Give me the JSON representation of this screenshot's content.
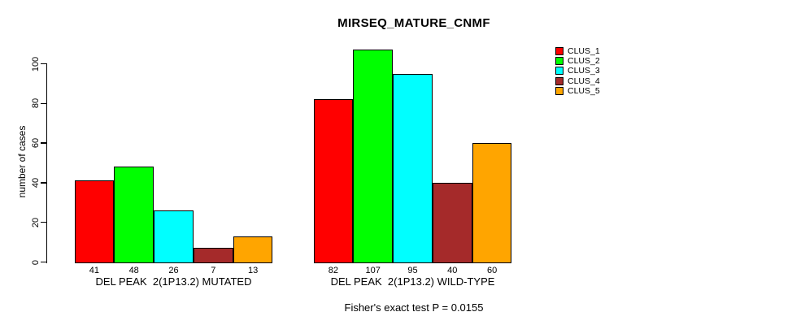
{
  "chart_data": {
    "type": "bar",
    "title": "MIRSEQ_MATURE_CNMF",
    "ylabel": "number of cases",
    "ylim": [
      0,
      110
    ],
    "yticks": [
      0,
      20,
      40,
      60,
      80,
      100
    ],
    "grid": false,
    "legend_position": "top-right",
    "bar_value_labels_shown": true,
    "categories": [
      "DEL PEAK  2(1P13.2) MUTATED",
      "DEL PEAK  2(1P13.2) WILD-TYPE"
    ],
    "series": [
      {
        "name": "CLUS_1",
        "color": "#ff0000",
        "values": [
          41,
          82
        ]
      },
      {
        "name": "CLUS_2",
        "color": "#00ff00",
        "values": [
          48,
          107
        ]
      },
      {
        "name": "CLUS_3",
        "color": "#00ffff",
        "values": [
          26,
          95
        ]
      },
      {
        "name": "CLUS_4",
        "color": "#a52a2a",
        "values": [
          7,
          40
        ]
      },
      {
        "name": "CLUS_5",
        "color": "#ffa500",
        "values": [
          13,
          60
        ]
      }
    ],
    "footnote": "Fisher's exact test P = 0.0155"
  }
}
